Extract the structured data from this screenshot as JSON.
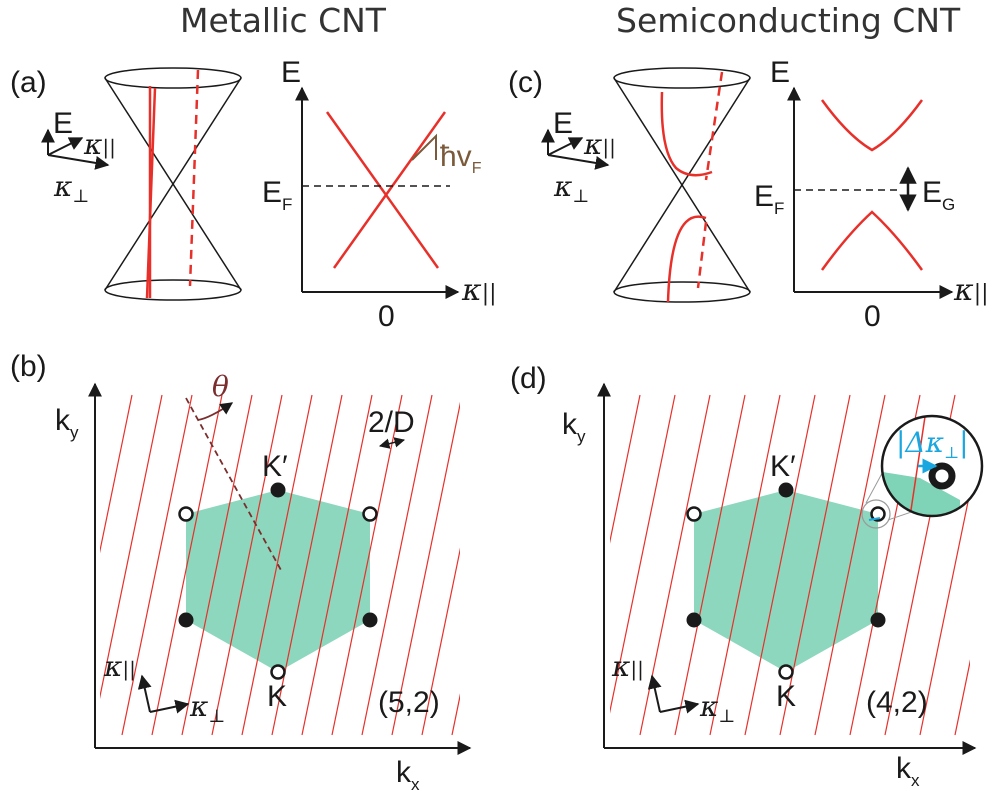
{
  "titles": {
    "metallic": "Metallic CNT",
    "semiconducting": "Semiconducting CNT"
  },
  "panels": {
    "a": "(a)",
    "b": "(b)",
    "c": "(c)",
    "d": "(d)"
  },
  "axes": {
    "E": "E",
    "kappa": "κ",
    "par": "||",
    "perp": "⊥",
    "zero": "0",
    "EF_main": "E",
    "EF_sub": "F",
    "kx_main": "k",
    "kx_sub": "x",
    "ky_main": "k",
    "ky_sub": "y"
  },
  "annotations": {
    "hbar_v": "ħv",
    "hbar_v_sub": "F",
    "EG_main": "E",
    "EG_sub": "G",
    "theta": "θ",
    "spacing": "2/D",
    "Kprime": "K′",
    "K": "K",
    "delta_kappa": "|Δκ",
    "delta_kappa_sub": "⊥",
    "delta_close": "|"
  },
  "chirality": {
    "b": "(5,2)",
    "d": "(4,2)"
  },
  "colors": {
    "band": "#e8302a",
    "brillouin": "#7fd3b6",
    "cutting_line": "#e8302a",
    "inset": "#1aa7e0",
    "arrow_brown": "#7a5a3a"
  }
}
